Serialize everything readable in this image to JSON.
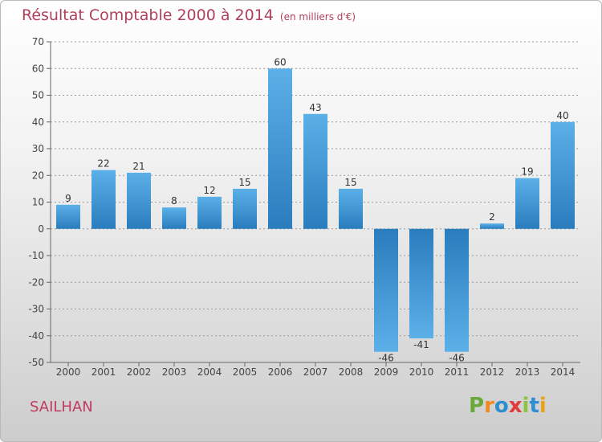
{
  "header": {
    "title": "Résultat Comptable 2000 à 2014",
    "unit": "(en milliers d'€)"
  },
  "footer": {
    "commune": "SAILHAN"
  },
  "logo": {
    "letters": [
      "P",
      "r",
      "o",
      "x",
      "i",
      "t",
      "i"
    ],
    "colors": [
      "#6aa83a",
      "#f08a1c",
      "#2e8fd0",
      "#e23b3b",
      "#8cc33f",
      "#2e8fd0",
      "#e8a21c"
    ]
  },
  "colors": {
    "bar_light": "#5aaee6",
    "bar_dark": "#2a7fc0",
    "axis": "#666666",
    "grid": "#9a9a9a"
  },
  "chart_data": {
    "type": "bar",
    "title": "Résultat Comptable 2000 à 2014",
    "ylabel": "en milliers d'€",
    "xlabel": "",
    "categories": [
      "2000",
      "2001",
      "2002",
      "2003",
      "2004",
      "2005",
      "2006",
      "2007",
      "2008",
      "2009",
      "2010",
      "2011",
      "2012",
      "2013",
      "2014"
    ],
    "values": [
      9,
      22,
      21,
      8,
      12,
      15,
      60,
      43,
      15,
      -46,
      -41,
      -46,
      2,
      19,
      40
    ],
    "ylim": [
      -50,
      70
    ],
    "yticks": [
      70,
      60,
      50,
      40,
      30,
      20,
      10,
      0,
      -10,
      -20,
      -30,
      -40,
      -50
    ],
    "grid": true
  }
}
